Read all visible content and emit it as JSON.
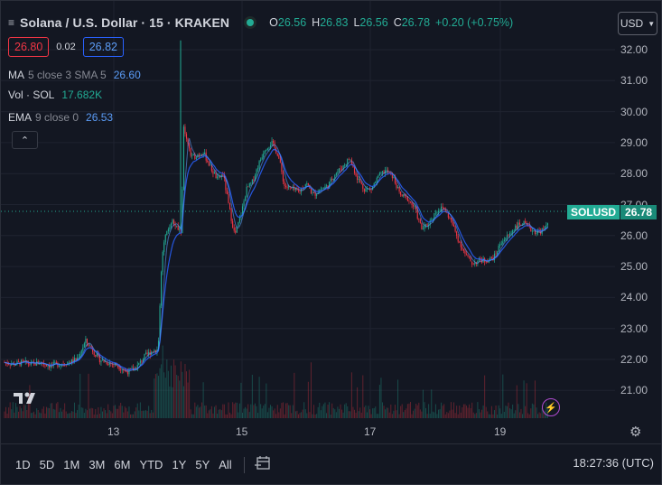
{
  "header": {
    "title": "Solana / U.S. Dollar · 15 · KRAKEN",
    "ohlc": {
      "o_label": "O",
      "o_val": "26.56",
      "h_label": "H",
      "h_val": "26.83",
      "l_label": "L",
      "l_val": "26.56",
      "c_label": "C",
      "c_val": "26.78",
      "change": "+0.20 (+0.75%)"
    }
  },
  "quote": {
    "bid": "26.80",
    "spread": "0.02",
    "ask": "26.82"
  },
  "indicators": {
    "ma": {
      "name": "MA",
      "params": "5 close 3 SMA 5",
      "value": "26.60"
    },
    "vol": {
      "name": "Vol · SOL",
      "value": "17.682K"
    },
    "ema": {
      "name": "EMA",
      "params": "9 close 0",
      "value": "26.53"
    }
  },
  "currency": {
    "label": "USD"
  },
  "price_label": {
    "symbol": "SOLUSD",
    "value": "26.78"
  },
  "y_ticks": [
    "32.00",
    "31.00",
    "30.00",
    "29.00",
    "28.00",
    "27.00",
    "26.00",
    "25.00",
    "24.00",
    "23.00",
    "22.00",
    "21.00"
  ],
  "x_ticks": [
    "13",
    "15",
    "17",
    "19"
  ],
  "ranges": [
    "1D",
    "5D",
    "1M",
    "3M",
    "6M",
    "YTD",
    "1Y",
    "5Y",
    "All"
  ],
  "clock": "18:27:36 (UTC)",
  "icons": {
    "logo": "tradingview-logo-icon",
    "lightning": "lightning-icon",
    "settings": "gear-icon",
    "calendar": "calendar-range-icon",
    "collapse": "chevron-up-icon"
  },
  "colors": {
    "up": "#22ab94",
    "down": "#f23645",
    "ma": "#5b9cf6",
    "ema": "#2962ff",
    "background": "#131722"
  },
  "chart_data": {
    "type": "candlestick",
    "interval": "15",
    "symbol": "SOLUSD",
    "exchange": "KRAKEN",
    "ylim": [
      20.5,
      32.4
    ],
    "x_tick_labels": [
      "13",
      "15",
      "17",
      "19"
    ],
    "last_price": 26.78,
    "close_path": [
      [
        0,
        21.9
      ],
      [
        10,
        21.85
      ],
      [
        20,
        21.9
      ],
      [
        30,
        21.85
      ],
      [
        40,
        21.9
      ],
      [
        50,
        21.8
      ],
      [
        60,
        21.85
      ],
      [
        70,
        21.9
      ],
      [
        80,
        22.0
      ],
      [
        90,
        22.6
      ],
      [
        95,
        22.4
      ],
      [
        105,
        22.0
      ],
      [
        115,
        21.9
      ],
      [
        125,
        21.8
      ],
      [
        135,
        21.6
      ],
      [
        145,
        21.7
      ],
      [
        155,
        22.1
      ],
      [
        165,
        22.3
      ],
      [
        170,
        22.3
      ],
      [
        173,
        24.5
      ],
      [
        176,
        25.8
      ],
      [
        180,
        26.1
      ],
      [
        185,
        26.5
      ],
      [
        192,
        26.2
      ],
      [
        196,
        26.1
      ],
      [
        198,
        29.5
      ],
      [
        202,
        29.0
      ],
      [
        207,
        28.5
      ],
      [
        213,
        28.6
      ],
      [
        220,
        28.7
      ],
      [
        228,
        28.2
      ],
      [
        236,
        27.8
      ],
      [
        242,
        28.0
      ],
      [
        248,
        27.0
      ],
      [
        255,
        26.0
      ],
      [
        262,
        26.7
      ],
      [
        268,
        27.5
      ],
      [
        274,
        27.7
      ],
      [
        280,
        28.2
      ],
      [
        288,
        28.8
      ],
      [
        296,
        29.0
      ],
      [
        303,
        28.6
      ],
      [
        310,
        27.6
      ],
      [
        318,
        27.5
      ],
      [
        326,
        27.4
      ],
      [
        334,
        27.7
      ],
      [
        342,
        27.3
      ],
      [
        350,
        27.5
      ],
      [
        358,
        27.6
      ],
      [
        366,
        28.0
      ],
      [
        374,
        28.2
      ],
      [
        382,
        28.5
      ],
      [
        390,
        27.9
      ],
      [
        398,
        27.5
      ],
      [
        406,
        27.5
      ],
      [
        414,
        27.9
      ],
      [
        422,
        28.1
      ],
      [
        430,
        27.9
      ],
      [
        438,
        27.3
      ],
      [
        446,
        27.2
      ],
      [
        454,
        26.9
      ],
      [
        462,
        26.2
      ],
      [
        470,
        26.4
      ],
      [
        478,
        26.8
      ],
      [
        486,
        26.9
      ],
      [
        494,
        26.5
      ],
      [
        502,
        25.9
      ],
      [
        510,
        25.4
      ],
      [
        518,
        25.1
      ],
      [
        526,
        25.2
      ],
      [
        534,
        25.2
      ],
      [
        542,
        25.3
      ],
      [
        550,
        25.8
      ],
      [
        558,
        26.0
      ],
      [
        566,
        26.3
      ],
      [
        574,
        26.4
      ],
      [
        582,
        26.2
      ],
      [
        590,
        26.1
      ],
      [
        598,
        26.2
      ],
      [
        606,
        26.78
      ]
    ]
  }
}
